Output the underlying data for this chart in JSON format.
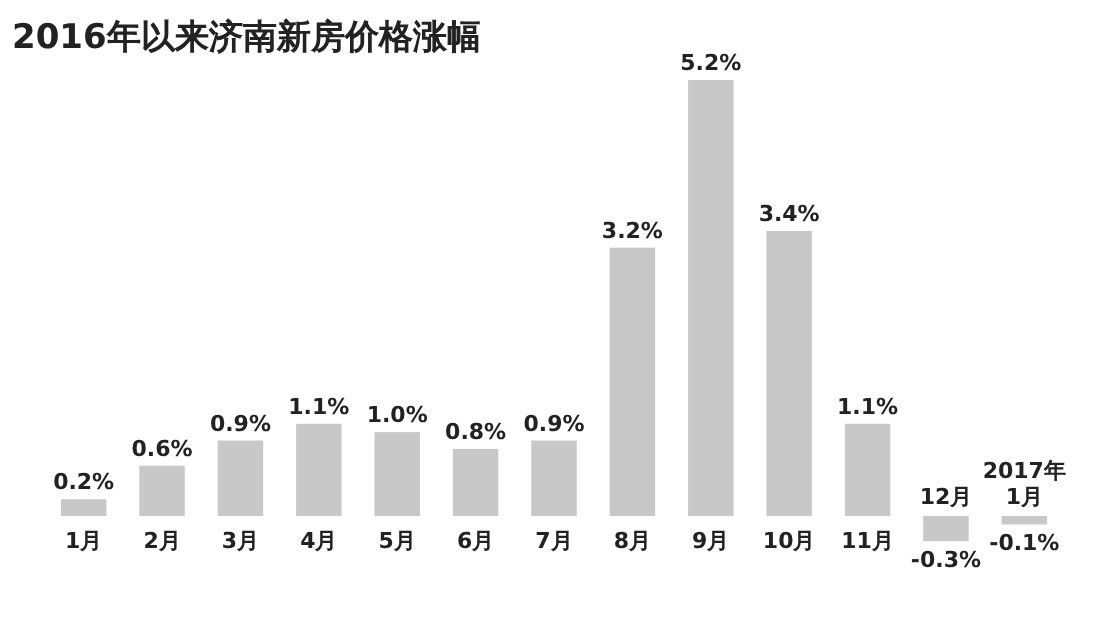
{
  "chart_data": {
    "type": "bar",
    "title": "2016年以来济南新房价格涨幅",
    "categories": [
      "1月",
      "2月",
      "3月",
      "4月",
      "5月",
      "6月",
      "7月",
      "8月",
      "9月",
      "10月",
      "11月",
      "12月",
      "2017年\n1月"
    ],
    "values": [
      0.2,
      0.6,
      0.9,
      1.1,
      1.0,
      0.8,
      0.9,
      3.2,
      5.2,
      3.4,
      1.1,
      -0.3,
      -0.1
    ],
    "color": "#c8c8c8",
    "data_labels": true,
    "value_labels": [
      "0.2%",
      "0.6%",
      "0.9%",
      "1.1%",
      "1.0%",
      "0.8%",
      "0.9%",
      "3.2%",
      "5.2%",
      "3.4%",
      "1.1%",
      "-0.3%",
      "-0.1%"
    ]
  }
}
